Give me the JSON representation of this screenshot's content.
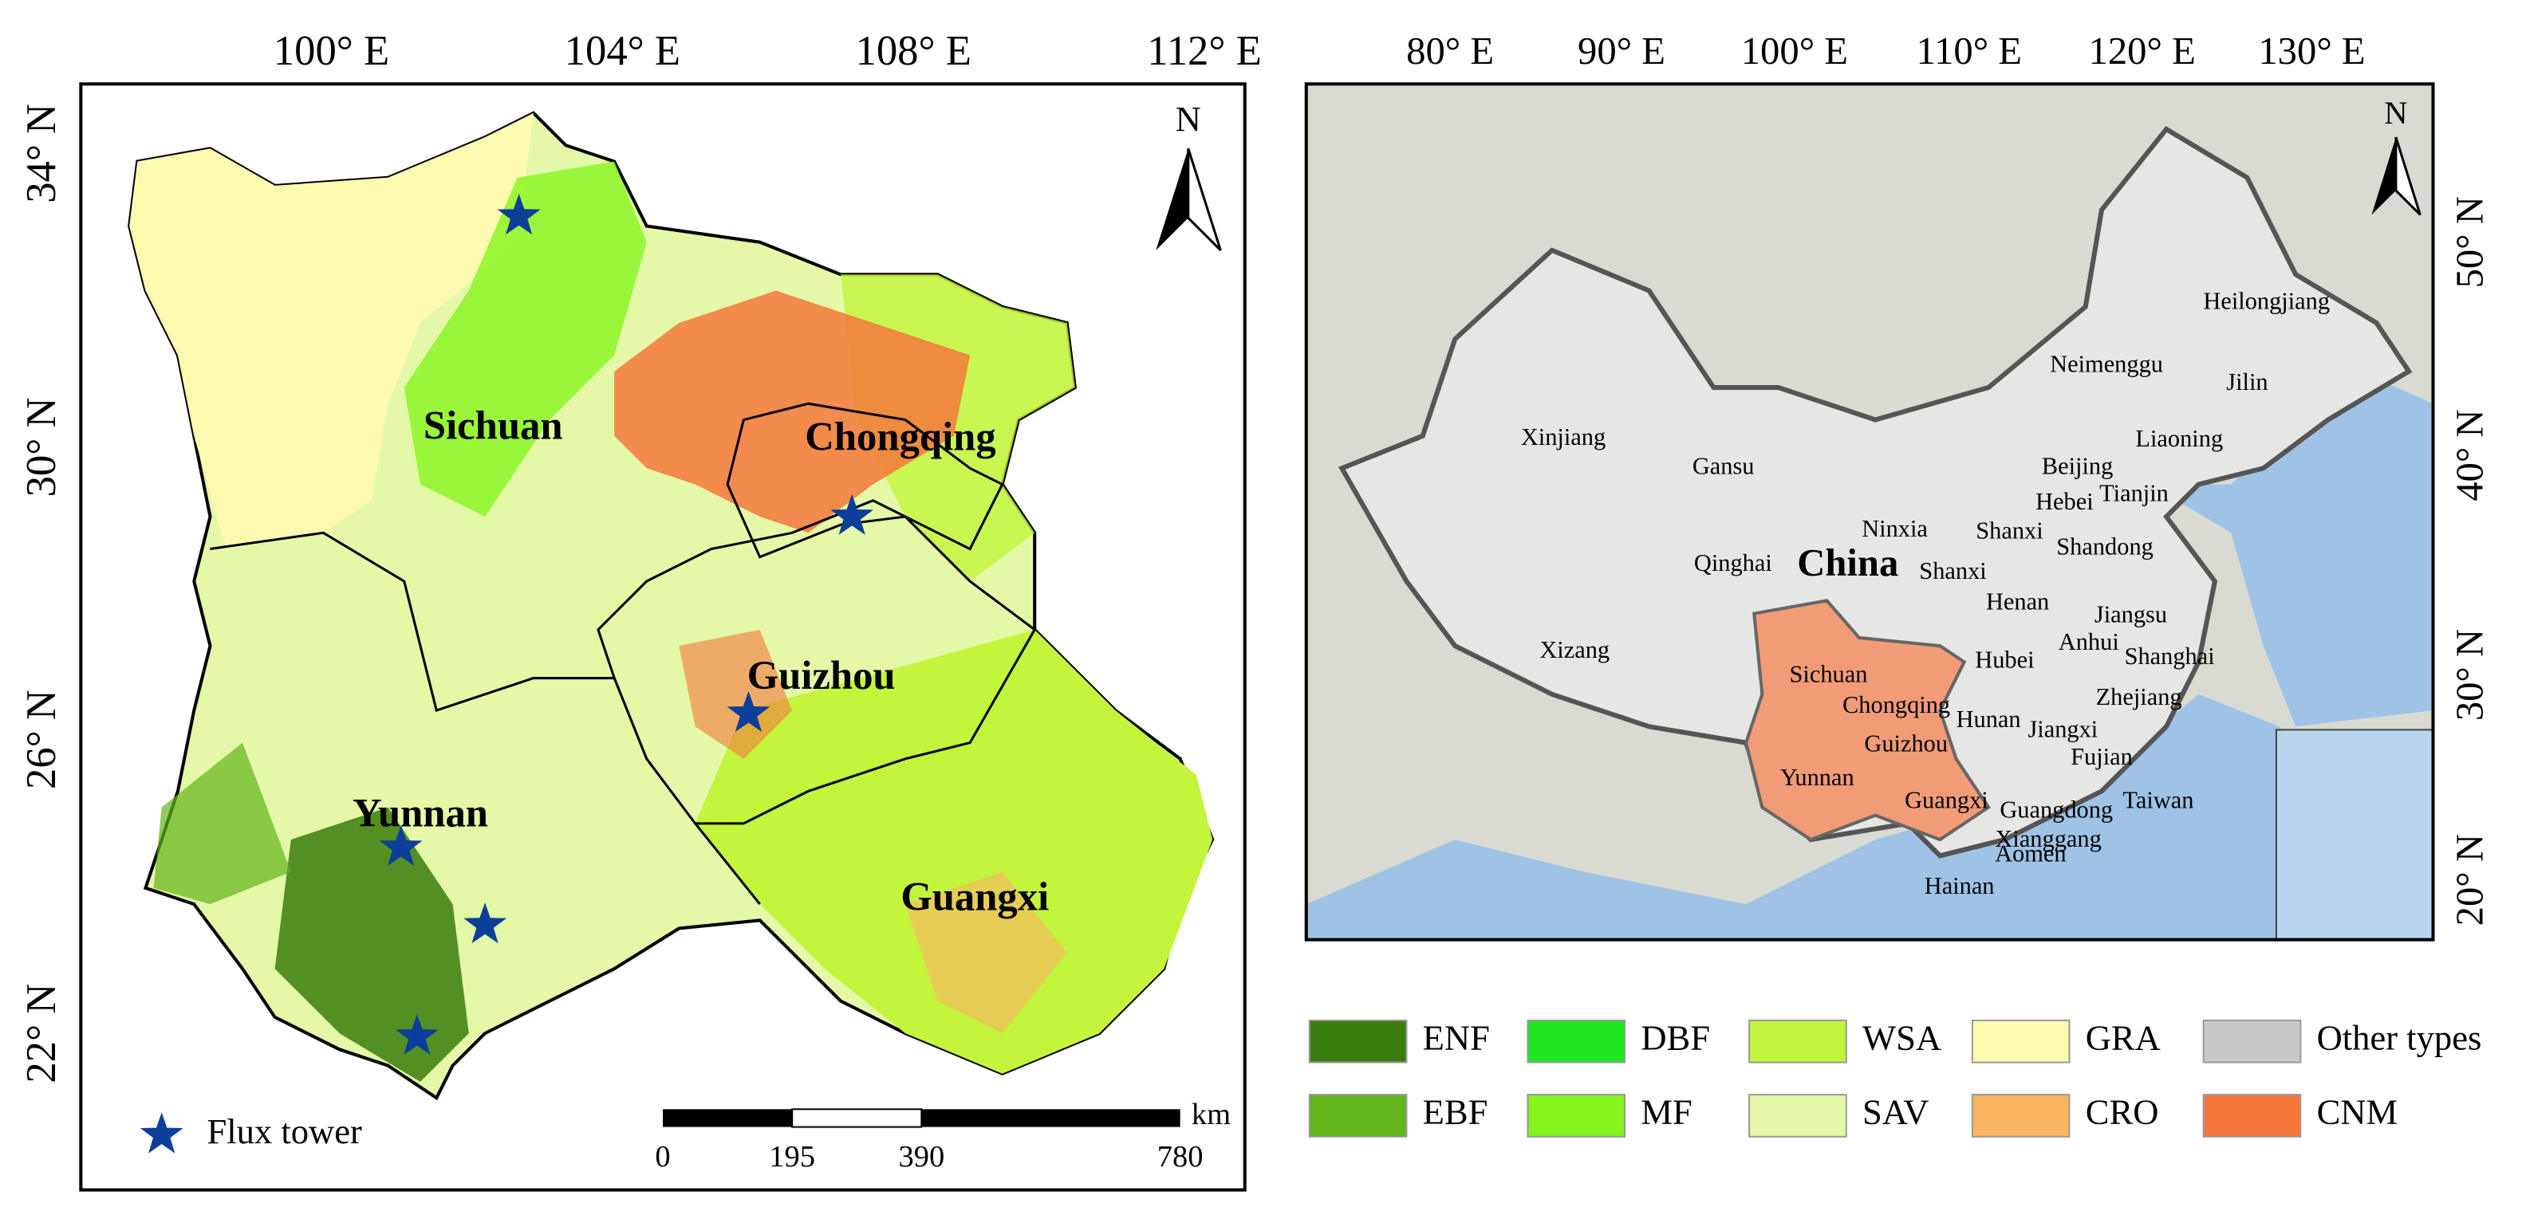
{
  "left_map": {
    "lon_labels": [
      "100° E",
      "104° E",
      "108° E",
      "112° E"
    ],
    "lat_labels": [
      "34° N",
      "30° N",
      "26° N",
      "22° N"
    ],
    "north": "N",
    "provinces": [
      "Sichuan",
      "Chongqing",
      "Guizhou",
      "Yunnan",
      "Guangxi"
    ],
    "flux_tower": "Flux tower",
    "scale_bar": {
      "labels": [
        "0",
        "195",
        "390",
        "780"
      ],
      "unit": "km"
    }
  },
  "right_map": {
    "lon_labels": [
      "80° E",
      "90° E",
      "100° E",
      "110° E",
      "120° E",
      "130° E"
    ],
    "lat_labels": [
      "50° N",
      "40° N",
      "30° N",
      "20° N"
    ],
    "north": "N",
    "country": "China",
    "provinces": [
      "Xinjiang",
      "Gansu",
      "Qinghai",
      "Xizang",
      "Ninxia",
      "Shanxi",
      "Shanxi",
      "Neimenggu",
      "Heilongjiang",
      "Jilin",
      "Liaoning",
      "Beijing",
      "Tianjin",
      "Hebei",
      "Shandong",
      "Henan",
      "Jiangsu",
      "Anhui",
      "Shanghai",
      "Hubei",
      "Zhejiang",
      "Sichuan",
      "Chongqing",
      "Guizhou",
      "Hunan",
      "Jiangxi",
      "Fujian",
      "Yunnan",
      "Guangxi",
      "Guangdong",
      "Taiwan",
      "Xianggang",
      "Aomen",
      "Hainan"
    ]
  },
  "legend": [
    {
      "label": "ENF",
      "color": "#3b7d0c"
    },
    {
      "label": "DBF",
      "color": "#1ee61e"
    },
    {
      "label": "WSA",
      "color": "#c3f53c"
    },
    {
      "label": "GRA",
      "color": "#fdfbb0"
    },
    {
      "label": "Other types",
      "color": "#c8c8c8"
    },
    {
      "label": "EBF",
      "color": "#62b51a"
    },
    {
      "label": "MF",
      "color": "#86f51e"
    },
    {
      "label": "SAV",
      "color": "#e4f8a8"
    },
    {
      "label": "CRO",
      "color": "#fbb462"
    },
    {
      "label": "CNM",
      "color": "#f4783c"
    }
  ]
}
